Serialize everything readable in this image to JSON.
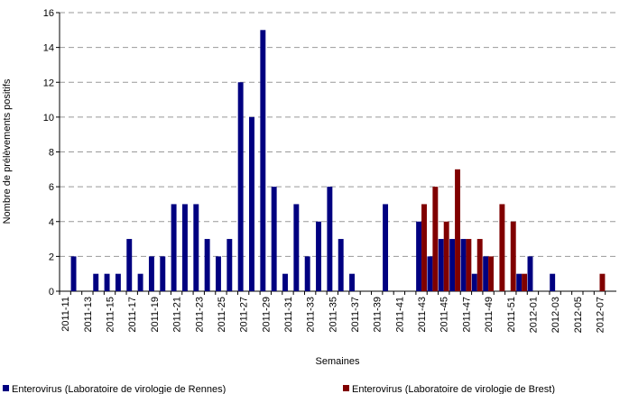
{
  "chart_data": {
    "type": "bar",
    "x_label": "Semaines",
    "y_label": "Nombre de prélèvements positifs",
    "categories": [
      "2011-11",
      null,
      "2011-13",
      null,
      "2011-15",
      null,
      "2011-17",
      null,
      "2011-19",
      null,
      "2011-21",
      null,
      "2011-23",
      null,
      "2011-25",
      null,
      "2011-27",
      null,
      "2011-29",
      null,
      "2011-31",
      null,
      "2011-33",
      null,
      "2011-35",
      null,
      "2011-37",
      null,
      "2011-39",
      null,
      "2011-41",
      null,
      "2011-43",
      null,
      "2011-45",
      null,
      "2011-47",
      null,
      "2011-49",
      null,
      "2011-51",
      null,
      "2012-01",
      null,
      "2012-03",
      null,
      "2012-05",
      null,
      "2012-07",
      null
    ],
    "series": [
      {
        "name": "Enterovirus (Laboratoire de virologie de Rennes)",
        "color": "#000080",
        "values": [
          0,
          2,
          0,
          1,
          1,
          1,
          3,
          1,
          2,
          2,
          5,
          5,
          5,
          3,
          2,
          3,
          12,
          10,
          15,
          6,
          1,
          5,
          2,
          4,
          6,
          3,
          1,
          0,
          0,
          5,
          0,
          0,
          4,
          2,
          3,
          3,
          3,
          1,
          2,
          0,
          0,
          1,
          2,
          0,
          1,
          0,
          0,
          0,
          0,
          0
        ]
      },
      {
        "name": "Enterovirus (Laboratoire de virologie de Brest)",
        "color": "#800000",
        "values": [
          0,
          0,
          0,
          0,
          0,
          0,
          0,
          0,
          0,
          0,
          0,
          0,
          0,
          0,
          0,
          0,
          0,
          0,
          0,
          0,
          0,
          0,
          0,
          0,
          0,
          0,
          0,
          0,
          0,
          0,
          0,
          0,
          5,
          6,
          4,
          7,
          3,
          3,
          2,
          5,
          4,
          1,
          0,
          0,
          0,
          0,
          0,
          0,
          1,
          0
        ]
      }
    ],
    "ylim": [
      0,
      16
    ],
    "yticks": [
      0,
      2,
      4,
      6,
      8,
      10,
      12,
      14,
      16
    ],
    "grid": true
  }
}
